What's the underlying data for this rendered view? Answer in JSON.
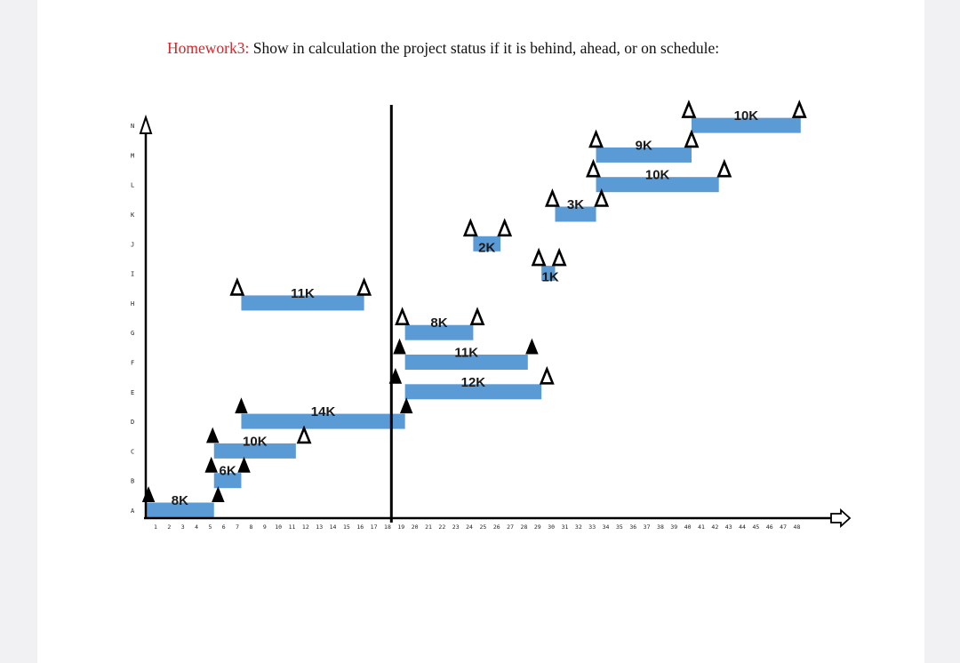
{
  "title": {
    "lead": "Homework3:",
    "text": " Show in calculation the project status if it is behind, ahead, or on schedule:"
  },
  "chart_data": {
    "type": "gantt",
    "rows": [
      "A",
      "B",
      "C",
      "D",
      "E",
      "F",
      "G",
      "H",
      "I",
      "J",
      "K",
      "L",
      "M",
      "N"
    ],
    "x_ticks": [
      1,
      2,
      3,
      4,
      5,
      6,
      7,
      8,
      9,
      10,
      11,
      12,
      13,
      14,
      15,
      16,
      17,
      18,
      19,
      20,
      21,
      22,
      23,
      24,
      25,
      26,
      27,
      28,
      29,
      30,
      31,
      32,
      33,
      34,
      35,
      36,
      37,
      38,
      39,
      40,
      41,
      42,
      43,
      44,
      45,
      46,
      47,
      48
    ],
    "status_line": 19,
    "bars": [
      {
        "row": "A",
        "start": 1,
        "end": 6,
        "label": "8K"
      },
      {
        "row": "B",
        "start": 6,
        "end": 8,
        "label": "6K"
      },
      {
        "row": "C",
        "start": 6,
        "end": 12,
        "label": "10K"
      },
      {
        "row": "D",
        "start": 8,
        "end": 20,
        "label": "14K"
      },
      {
        "row": "E",
        "start": 20,
        "end": 30,
        "label": "12K"
      },
      {
        "row": "F",
        "start": 20,
        "end": 29,
        "label": "11K"
      },
      {
        "row": "G",
        "start": 20,
        "end": 25,
        "label": "8K"
      },
      {
        "row": "H",
        "start": 8,
        "end": 17,
        "label": "11K"
      },
      {
        "row": "I",
        "start": 30,
        "end": 31,
        "label": "1K"
      },
      {
        "row": "J",
        "start": 25,
        "end": 27,
        "label": "2K"
      },
      {
        "row": "K",
        "start": 31,
        "end": 34,
        "label": "3K"
      },
      {
        "row": "L",
        "start": 34,
        "end": 43,
        "label": "10K"
      },
      {
        "row": "M",
        "start": 34,
        "end": 41,
        "label": "9K"
      },
      {
        "row": "N",
        "start": 41,
        "end": 49,
        "label": "10K"
      }
    ],
    "markers": [
      {
        "row": "A",
        "x": 1.2,
        "filled": true
      },
      {
        "row": "A",
        "x": 6.3,
        "filled": true
      },
      {
        "row": "B",
        "x": 5.8,
        "filled": true
      },
      {
        "row": "B",
        "x": 8.2,
        "filled": true
      },
      {
        "row": "C",
        "x": 5.9,
        "filled": true
      },
      {
        "row": "C",
        "x": 12.6,
        "filled": false
      },
      {
        "row": "D",
        "x": 8.0,
        "filled": true
      },
      {
        "row": "D",
        "x": 20.1,
        "filled": true
      },
      {
        "row": "E",
        "x": 19.3,
        "filled": true
      },
      {
        "row": "E",
        "x": 30.4,
        "filled": false
      },
      {
        "row": "F",
        "x": 19.6,
        "filled": true
      },
      {
        "row": "F",
        "x": 29.3,
        "filled": true
      },
      {
        "row": "G",
        "x": 19.8,
        "filled": false
      },
      {
        "row": "G",
        "x": 25.3,
        "filled": false
      },
      {
        "row": "H",
        "x": 7.7,
        "filled": false
      },
      {
        "row": "H",
        "x": 17.0,
        "filled": false
      },
      {
        "row": "I",
        "x": 29.8,
        "filled": false
      },
      {
        "row": "I",
        "x": 31.3,
        "filled": false
      },
      {
        "row": "J",
        "x": 24.8,
        "filled": false
      },
      {
        "row": "J",
        "x": 27.3,
        "filled": false
      },
      {
        "row": "K",
        "x": 30.8,
        "filled": false
      },
      {
        "row": "K",
        "x": 34.4,
        "filled": false
      },
      {
        "row": "L",
        "x": 33.8,
        "filled": false
      },
      {
        "row": "L",
        "x": 43.4,
        "filled": false
      },
      {
        "row": "M",
        "x": 34.0,
        "filled": false
      },
      {
        "row": "M",
        "x": 41.0,
        "filled": false
      },
      {
        "row": "N",
        "x": 40.8,
        "filled": false
      },
      {
        "row": "N",
        "x": 48.9,
        "filled": false
      }
    ],
    "bar_color": "#5b9bd5",
    "marker_color": "#000000"
  }
}
